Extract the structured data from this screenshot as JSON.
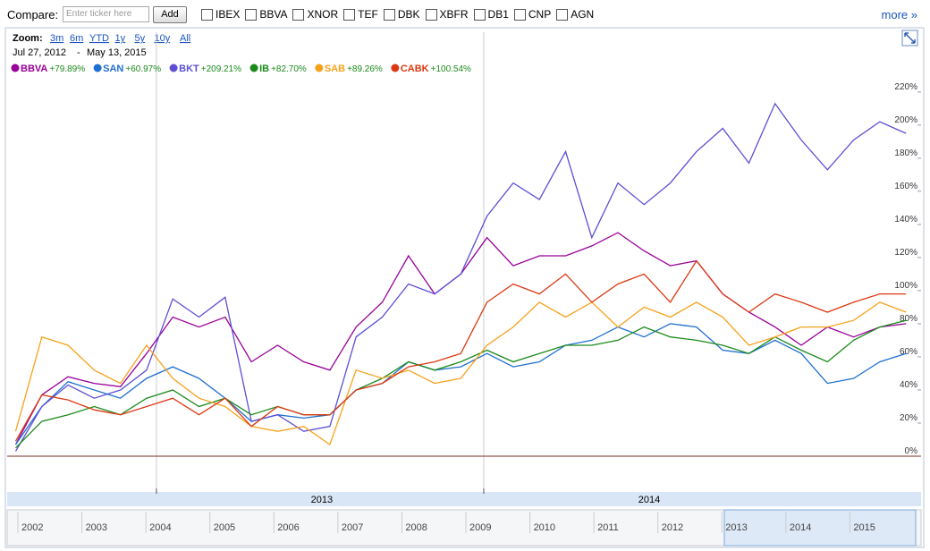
{
  "toolbar": {
    "label": "Compare:",
    "placeholder": "Enter ticker here",
    "button": "Add",
    "checkboxes": [
      "IBEX",
      "BBVA",
      "XNOR",
      "TEF",
      "DBK",
      "XBFR",
      "DB1",
      "CNP",
      "AGN"
    ],
    "more": "more »"
  },
  "zoom": {
    "label": "Zoom:",
    "options": [
      "3m",
      "6m",
      "YTD",
      "1y",
      "5y",
      "10y",
      "All"
    ]
  },
  "date_range": {
    "start": "Jul 27, 2012",
    "separator": "-",
    "end": "May 13, 2015"
  },
  "chart_data": {
    "type": "line",
    "x": [
      2012.57,
      2012.65,
      2012.73,
      2012.81,
      2012.89,
      2012.97,
      2013.05,
      2013.13,
      2013.21,
      2013.29,
      2013.37,
      2013.45,
      2013.53,
      2013.61,
      2013.69,
      2013.77,
      2013.85,
      2013.93,
      2014.01,
      2014.09,
      2014.17,
      2014.25,
      2014.33,
      2014.41,
      2014.49,
      2014.57,
      2014.65,
      2014.73,
      2014.81,
      2014.89,
      2014.97,
      2015.05,
      2015.13,
      2015.21,
      2015.29
    ],
    "xlim": [
      2012.544,
      2015.336
    ],
    "xticks": [
      2013,
      2014
    ],
    "ylim": [
      0,
      228
    ],
    "yticks": [
      {
        "value": 0,
        "label": "0%"
      },
      {
        "value": 20,
        "label": "20%"
      },
      {
        "value": 40,
        "label": "40%"
      },
      {
        "value": 60,
        "label": "60%"
      },
      {
        "value": 80,
        "label": "80%"
      },
      {
        "value": 100,
        "label": "100%"
      },
      {
        "value": 120,
        "label": "120%"
      },
      {
        "value": 140,
        "label": "140%"
      },
      {
        "value": 160,
        "label": "160%"
      },
      {
        "value": 180,
        "label": "180%"
      },
      {
        "value": 200,
        "label": "200%"
      },
      {
        "value": 220,
        "label": "220%"
      }
    ],
    "series": [
      {
        "name": "BBVA",
        "change": "+79.89%",
        "color": "#990099",
        "values": [
          7,
          37,
          48,
          44,
          42,
          62,
          84,
          78,
          84,
          57,
          67,
          57,
          52,
          78,
          93,
          121,
          98,
          110,
          132,
          115,
          121,
          121,
          127,
          135,
          124,
          115,
          118,
          98,
          87,
          78,
          67,
          78,
          72,
          78,
          80
        ]
      },
      {
        "name": "SAN",
        "change": "+60.97%",
        "color": "#1f6fd0",
        "values": [
          7,
          30,
          45,
          40,
          35,
          47,
          54,
          47,
          35,
          21,
          25,
          23,
          25,
          40,
          44,
          57,
          52,
          54,
          62,
          54,
          57,
          67,
          70,
          78,
          72,
          80,
          78,
          64,
          62,
          70,
          62,
          44,
          47,
          57,
          62
        ]
      },
      {
        "name": "BKT",
        "change": "+209.21%",
        "color": "#5d4fd3",
        "values": [
          3,
          30,
          43,
          35,
          40,
          52,
          95,
          84,
          96,
          21,
          25,
          15,
          18,
          72,
          84,
          104,
          98,
          110,
          145,
          165,
          155,
          184,
          132,
          165,
          152,
          165,
          184,
          198,
          177,
          213,
          191,
          173,
          191,
          202,
          195
        ]
      },
      {
        "name": "IB",
        "change": "+82.70%",
        "color": "#1b8a1b",
        "values": [
          5,
          21,
          25,
          30,
          25,
          35,
          40,
          30,
          35,
          25,
          30,
          25,
          25,
          40,
          47,
          57,
          52,
          57,
          64,
          57,
          62,
          67,
          67,
          70,
          78,
          72,
          70,
          67,
          62,
          72,
          64,
          57,
          70,
          78,
          82
        ]
      },
      {
        "name": "SAB",
        "change": "+89.26%",
        "color": "#f7a21b",
        "values": [
          15,
          72,
          67,
          52,
          44,
          67,
          47,
          35,
          30,
          18,
          15,
          18,
          7,
          52,
          47,
          52,
          44,
          47,
          67,
          78,
          93,
          84,
          93,
          78,
          90,
          84,
          93,
          84,
          67,
          72,
          78,
          78,
          82,
          93,
          87
        ]
      },
      {
        "name": "CABK",
        "change": "+100.54%",
        "color": "#dc3912",
        "values": [
          9,
          37,
          34,
          28,
          25,
          30,
          35,
          25,
          35,
          18,
          30,
          25,
          25,
          40,
          44,
          54,
          57,
          62,
          93,
          104,
          98,
          110,
          93,
          104,
          110,
          93,
          118,
          98,
          87,
          98,
          93,
          87,
          93,
          98,
          98
        ]
      }
    ]
  },
  "navigator": {
    "years": [
      "2002",
      "2003",
      "2004",
      "2005",
      "2006",
      "2007",
      "2008",
      "2009",
      "2010",
      "2011",
      "2012",
      "2013",
      "2014",
      "2015"
    ]
  }
}
